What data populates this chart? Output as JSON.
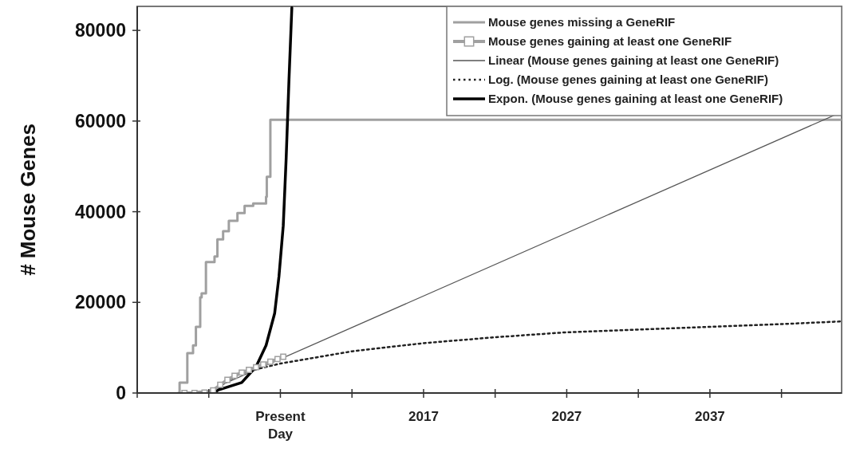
{
  "chart_data": {
    "type": "line",
    "ylabel": "# Mouse Genes",
    "xlim": [
      1997,
      2046.2
    ],
    "ylim": [
      0,
      85300
    ],
    "xticks": [
      {
        "value": 1997,
        "label": null
      },
      {
        "value": 2002,
        "label": null
      },
      {
        "value": 2007,
        "label": "Present Day"
      },
      {
        "value": 2012,
        "label": null
      },
      2017,
      {
        "value": 2022,
        "label": null
      },
      2027,
      {
        "value": 2032,
        "label": null
      },
      2037,
      {
        "value": 2042,
        "label": null
      }
    ],
    "yticks": [
      0,
      20000,
      40000,
      60000,
      80000
    ],
    "grid": false,
    "legend": "top right",
    "series": [
      {
        "name": "Mouse genes missing a GeneRIF",
        "type": "step",
        "color": "#a0a0a0",
        "marker": "none",
        "line_style": "solid",
        "x": [
          1999.85,
          1999.96,
          2000.5,
          2000.9,
          2001.1,
          2001.4,
          2001.5,
          2001.8,
          2002.4,
          2002.6,
          2003.0,
          2003.4,
          2004.0,
          2004.5,
          2005.1,
          2006.0,
          2006.05,
          2006.3,
          2006.55,
          2046.2
        ],
        "values": [
          0,
          2300,
          8800,
          10500,
          14600,
          21100,
          22000,
          28900,
          30100,
          33900,
          35700,
          38000,
          39700,
          41300,
          41800,
          43300,
          47700,
          60300,
          60300,
          60300
        ]
      },
      {
        "name": "Mouse genes gaining at least one GeneRIF",
        "color": "#a0a0a0",
        "marker": "square",
        "line_style": "solid",
        "x": [
          2000.3,
          2001,
          2001.7,
          2002.3,
          2002.8,
          2003.3,
          2003.8,
          2004.3,
          2004.8,
          2005.3,
          2005.8,
          2006.3,
          2006.8,
          2007.2
        ],
        "values": [
          0,
          0,
          100,
          600,
          1800,
          2900,
          3800,
          4500,
          5100,
          5700,
          6300,
          6900,
          7500,
          8000
        ]
      },
      {
        "name": "Linear (Mouse genes gaining at least one GeneRIF)",
        "color": "#555555",
        "marker": "none",
        "line_style": "solid",
        "x": [
          2001.6,
          2046.2
        ],
        "values": [
          0,
          62000
        ]
      },
      {
        "name": "Log. (Mouse genes gaining at least one GeneRIF)",
        "color": "#222222",
        "marker": "none",
        "line_style": "dotted",
        "x": [
          2002.5,
          2003,
          2004,
          2005,
          2007,
          2012,
          2017,
          2022,
          2027,
          2032,
          2037,
          2042,
          2046.2
        ],
        "values": [
          0,
          2000,
          4000,
          5000,
          6500,
          9200,
          11000,
          12300,
          13400,
          14000,
          14600,
          15200,
          15800
        ]
      },
      {
        "name": "Expon. (Mouse genes gaining at least one GeneRIF)",
        "color": "#000000",
        "marker": "none",
        "line_style": "solid",
        "x": [
          2000.6,
          2001.7,
          2002.5,
          2004.3,
          2005.3,
          2006.0,
          2006.6,
          2006.9,
          2007.2,
          2007.4,
          2007.6,
          2007.8
        ],
        "values": [
          0,
          200,
          500,
          2300,
          5800,
          10500,
          17600,
          25700,
          36900,
          51500,
          69100,
          85000
        ]
      }
    ]
  }
}
